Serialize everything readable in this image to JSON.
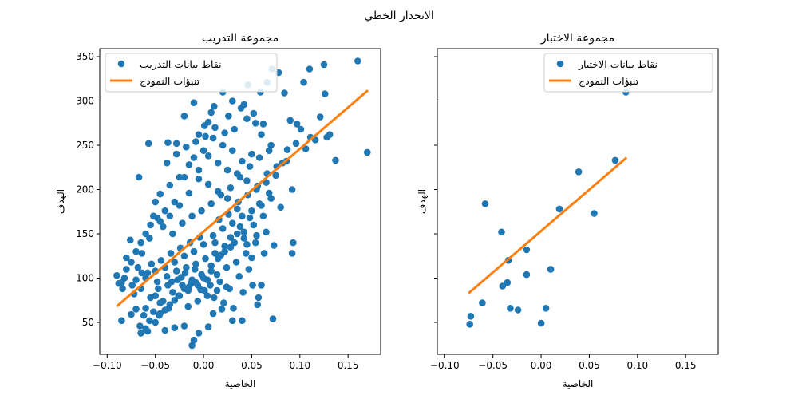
{
  "chart_data": {
    "type": "scatter",
    "suptitle": "الانحدار الخطي",
    "colors": {
      "points": "#1f77b4",
      "line": "#ff7f0e",
      "axis": "#000000",
      "legend_border": "#cccccc"
    },
    "shared_y": true,
    "ylim": [
      14,
      359
    ],
    "yticks": [
      50,
      100,
      150,
      200,
      250,
      300,
      350
    ],
    "xlim": [
      -0.1077,
      0.1838
    ],
    "xticks": [
      -0.1,
      -0.05,
      0.0,
      0.05,
      0.1,
      0.15
    ],
    "xtick_labels": [
      "−0.10",
      "−0.05",
      "0.00",
      "0.05",
      "0.10",
      "0.15"
    ],
    "panels": [
      {
        "title": "مجموعة التدريب",
        "xlabel": "الخاصية",
        "ylabel": "الهدف",
        "legend": {
          "position": "top-left",
          "points_label": "نقاط بيانات التدريب",
          "line_label": "تنبؤات النموذج"
        },
        "line": {
          "x": [
            -0.0902,
            0.1706
          ],
          "y": [
            68,
            312
          ]
        },
        "points": [
          [
            0.16,
            345
          ],
          [
            0.078,
            332
          ],
          [
            0.11,
            336
          ],
          [
            0.125,
            341
          ],
          [
            0.046,
            318
          ],
          [
            0.104,
            321
          ],
          [
            0.126,
            308
          ],
          [
            0.17,
            242
          ],
          [
            0.137,
            233
          ],
          [
            0.128,
            259
          ],
          [
            0.111,
            259
          ],
          [
            0.097,
            274
          ],
          [
            0.09,
            278
          ],
          [
            0.092,
            200
          ],
          [
            0.093,
            140
          ],
          [
            0.092,
            128
          ],
          [
            0.08,
            180
          ],
          [
            0.084,
            309
          ],
          [
            0.071,
            336
          ],
          [
            0.066,
            321
          ],
          [
            0.059,
            310
          ],
          [
            0.054,
            275
          ],
          [
            0.045,
            280
          ],
          [
            0.039,
            292
          ],
          [
            0.03,
            300
          ],
          [
            0.026,
            283
          ],
          [
            0.02,
            310
          ],
          [
            0.011,
            294
          ],
          [
            0.008,
            287
          ],
          [
            0.005,
            276
          ],
          [
            0.001,
            272
          ],
          [
            -0.005,
            262
          ],
          [
            -0.01,
            298
          ],
          [
            -0.02,
            283
          ],
          [
            -0.028,
            252
          ],
          [
            -0.037,
            253
          ],
          [
            -0.057,
            252
          ],
          [
            -0.067,
            214
          ],
          [
            -0.076,
            143
          ],
          [
            -0.08,
            123
          ],
          [
            -0.082,
            100
          ],
          [
            -0.088,
            94
          ],
          [
            -0.09,
            103
          ],
          [
            -0.085,
            52
          ],
          [
            -0.075,
            59
          ],
          [
            -0.07,
            65
          ],
          [
            -0.065,
            38
          ],
          [
            -0.06,
            43
          ],
          [
            -0.058,
            40
          ],
          [
            -0.05,
            50
          ],
          [
            -0.045,
            60
          ],
          [
            -0.04,
            41
          ],
          [
            -0.03,
            44
          ],
          [
            -0.02,
            46
          ],
          [
            -0.012,
            24
          ],
          [
            -0.01,
            30
          ],
          [
            -0.005,
            38
          ],
          [
            0.005,
            45
          ],
          [
            0.01,
            60
          ],
          [
            0.019,
            65
          ],
          [
            0.03,
            52
          ],
          [
            0.04,
            52
          ],
          [
            0.056,
            70
          ],
          [
            0.072,
            54
          ],
          [
            0.06,
            92
          ],
          [
            0.057,
            78
          ],
          [
            0.05,
            123
          ],
          [
            0.042,
            145
          ],
          [
            0.035,
            150
          ],
          [
            0.028,
            135
          ],
          [
            0.022,
            130
          ],
          [
            0.015,
            122
          ],
          [
            0.012,
            140
          ],
          [
            0.008,
            108
          ],
          [
            0.0,
            100
          ],
          [
            -0.008,
            95
          ],
          [
            -0.015,
            90
          ],
          [
            -0.02,
            88
          ],
          [
            -0.025,
            80
          ],
          [
            -0.03,
            75
          ],
          [
            -0.035,
            70
          ],
          [
            -0.04,
            64
          ],
          [
            -0.045,
            72
          ],
          [
            -0.05,
            80
          ],
          [
            -0.055,
            78
          ],
          [
            -0.06,
            66
          ],
          [
            -0.065,
            88
          ],
          [
            -0.07,
            98
          ],
          [
            -0.06,
            100
          ],
          [
            -0.05,
            108
          ],
          [
            -0.04,
            112
          ],
          [
            -0.03,
            118
          ],
          [
            -0.02,
            125
          ],
          [
            -0.01,
            130
          ],
          [
            0.0,
            138
          ],
          [
            0.01,
            148
          ],
          [
            0.02,
            156
          ],
          [
            0.03,
            162
          ],
          [
            0.04,
            170
          ],
          [
            0.05,
            176
          ],
          [
            0.06,
            182
          ],
          [
            0.07,
            190
          ],
          [
            0.065,
            208
          ],
          [
            0.055,
            200
          ],
          [
            0.045,
            210
          ],
          [
            0.035,
            218
          ],
          [
            0.025,
            222
          ],
          [
            0.015,
            230
          ],
          [
            0.005,
            238
          ],
          [
            -0.005,
            222
          ],
          [
            -0.015,
            228
          ],
          [
            -0.025,
            214
          ],
          [
            -0.035,
            205
          ],
          [
            -0.045,
            195
          ],
          [
            -0.05,
            186
          ],
          [
            -0.055,
            160
          ],
          [
            -0.06,
            150
          ],
          [
            -0.065,
            140
          ],
          [
            -0.07,
            130
          ],
          [
            -0.075,
            118
          ],
          [
            -0.08,
            110
          ],
          [
            -0.085,
            95
          ],
          [
            -0.072,
            82
          ],
          [
            -0.062,
            58
          ],
          [
            -0.052,
            62
          ],
          [
            -0.042,
            74
          ],
          [
            -0.032,
            84
          ],
          [
            -0.022,
            92
          ],
          [
            -0.012,
            98
          ],
          [
            -0.002,
            104
          ],
          [
            0.008,
            114
          ],
          [
            0.018,
            126
          ],
          [
            0.028,
            146
          ],
          [
            0.038,
            158
          ],
          [
            0.048,
            168
          ],
          [
            0.058,
            184
          ],
          [
            0.068,
            196
          ],
          [
            0.075,
            216
          ],
          [
            0.082,
            230
          ],
          [
            0.087,
            245
          ],
          [
            0.07,
            250
          ],
          [
            0.06,
            262
          ],
          [
            0.05,
            240
          ],
          [
            0.04,
            232
          ],
          [
            0.03,
            244
          ],
          [
            0.02,
            250
          ],
          [
            0.01,
            258
          ],
          [
            0.0,
            244
          ],
          [
            -0.01,
            236
          ],
          [
            -0.02,
            214
          ],
          [
            -0.03,
            186
          ],
          [
            -0.04,
            176
          ],
          [
            -0.048,
            168
          ],
          [
            -0.056,
            145
          ],
          [
            -0.064,
            128
          ],
          [
            -0.068,
            112
          ],
          [
            -0.058,
            106
          ],
          [
            -0.048,
            96
          ],
          [
            -0.038,
            102
          ],
          [
            -0.028,
            108
          ],
          [
            -0.018,
            112
          ],
          [
            -0.008,
            116
          ],
          [
            0.002,
            122
          ],
          [
            0.012,
            128
          ],
          [
            0.022,
            136
          ],
          [
            0.032,
            140
          ],
          [
            0.042,
            152
          ],
          [
            0.052,
            160
          ],
          [
            0.062,
            170
          ],
          [
            0.054,
            140
          ],
          [
            0.044,
            128
          ],
          [
            0.034,
            118
          ],
          [
            0.024,
            112
          ],
          [
            0.014,
            104
          ],
          [
            0.004,
            98
          ],
          [
            -0.006,
            92
          ],
          [
            -0.016,
            86
          ],
          [
            -0.026,
            80
          ],
          [
            -0.036,
            66
          ],
          [
            -0.046,
            58
          ],
          [
            -0.056,
            52
          ],
          [
            -0.066,
            46
          ],
          [
            -0.016,
            68
          ],
          [
            -0.006,
            74
          ],
          [
            0.004,
            80
          ],
          [
            0.014,
            86
          ],
          [
            0.024,
            90
          ],
          [
            -0.033,
            96
          ],
          [
            -0.023,
            101
          ],
          [
            -0.013,
            94
          ],
          [
            -0.003,
            87
          ],
          [
            0.007,
            92
          ],
          [
            0.017,
            96
          ],
          [
            0.027,
            88
          ],
          [
            0.037,
            102
          ],
          [
            0.047,
            110
          ],
          [
            0.063,
            128
          ],
          [
            0.073,
            137
          ],
          [
            0.065,
            152
          ],
          [
            0.055,
            148
          ],
          [
            0.045,
            138
          ],
          [
            0.035,
            178
          ],
          [
            0.025,
            190
          ],
          [
            0.015,
            198
          ],
          [
            0.005,
            206
          ],
          [
            -0.005,
            212
          ],
          [
            -0.015,
            196
          ],
          [
            -0.025,
            182
          ],
          [
            -0.035,
            170
          ],
          [
            -0.045,
            164
          ],
          [
            -0.052,
            170
          ],
          [
            -0.042,
            158
          ],
          [
            -0.032,
            150
          ],
          [
            -0.022,
            162
          ],
          [
            -0.012,
            170
          ],
          [
            -0.002,
            176
          ],
          [
            0.008,
            184
          ],
          [
            0.018,
            194
          ],
          [
            0.028,
            202
          ],
          [
            0.038,
            214
          ],
          [
            0.048,
            226
          ],
          [
            0.058,
            236
          ],
          [
            0.068,
            244
          ],
          [
            0.062,
            274
          ],
          [
            0.052,
            286
          ],
          [
            0.042,
            296
          ],
          [
            0.032,
            268
          ],
          [
            0.022,
            264
          ],
          [
            0.012,
            270
          ],
          [
            0.002,
            260
          ],
          [
            -0.008,
            254
          ],
          [
            -0.018,
            248
          ],
          [
            -0.028,
            240
          ],
          [
            -0.038,
            230
          ],
          [
            -0.004,
            146
          ],
          [
            -0.014,
            140
          ],
          [
            -0.024,
            134
          ],
          [
            -0.034,
            128
          ],
          [
            -0.044,
            120
          ],
          [
            -0.054,
            116
          ],
          [
            -0.064,
            106
          ],
          [
            -0.074,
            92
          ],
          [
            -0.084,
            88
          ],
          [
            0.016,
            166
          ],
          [
            0.026,
            172
          ],
          [
            0.036,
            186
          ],
          [
            0.046,
            194
          ],
          [
            0.056,
            204
          ],
          [
            0.066,
            218
          ],
          [
            0.076,
            226
          ],
          [
            0.086,
            232
          ],
          [
            0.096,
            252
          ],
          [
            0.101,
            268
          ],
          [
            0.106,
            246
          ],
          [
            0.116,
            256
          ],
          [
            0.121,
            282
          ],
          [
            0.131,
            262
          ],
          [
            -0.019,
            106
          ],
          [
            -0.009,
            110
          ],
          [
            0.001,
            86
          ],
          [
            0.011,
            78
          ],
          [
            0.021,
            72
          ],
          [
            0.031,
            66
          ],
          [
            0.041,
            84
          ],
          [
            0.051,
            92
          ],
          [
            -0.047,
            88
          ],
          [
            -0.037,
            92
          ],
          [
            -0.027,
            98
          ]
        ]
      },
      {
        "title": "مجموعة الاختبار",
        "xlabel": "الخاصية",
        "ylabel": "الهدف",
        "legend": {
          "position": "top-right",
          "points_label": "نقاط بيانات الاختبار",
          "line_label": "تنبؤات النموذج"
        },
        "line": {
          "x": [
            -0.0752,
            0.0887
          ],
          "y": [
            83,
            236
          ]
        },
        "points": [
          [
            0.088,
            310
          ],
          [
            0.077,
            233
          ],
          [
            0.039,
            220
          ],
          [
            0.019,
            178
          ],
          [
            0.055,
            173
          ],
          [
            -0.058,
            184
          ],
          [
            -0.041,
            152
          ],
          [
            -0.034,
            120
          ],
          [
            -0.015,
            132
          ],
          [
            -0.035,
            95
          ],
          [
            -0.04,
            91
          ],
          [
            0.01,
            110
          ],
          [
            -0.015,
            104
          ],
          [
            -0.061,
            72
          ],
          [
            -0.032,
            66
          ],
          [
            -0.024,
            64
          ],
          [
            0.005,
            66
          ],
          [
            0.0,
            49
          ],
          [
            -0.073,
            57
          ],
          [
            -0.074,
            48
          ]
        ]
      }
    ]
  }
}
